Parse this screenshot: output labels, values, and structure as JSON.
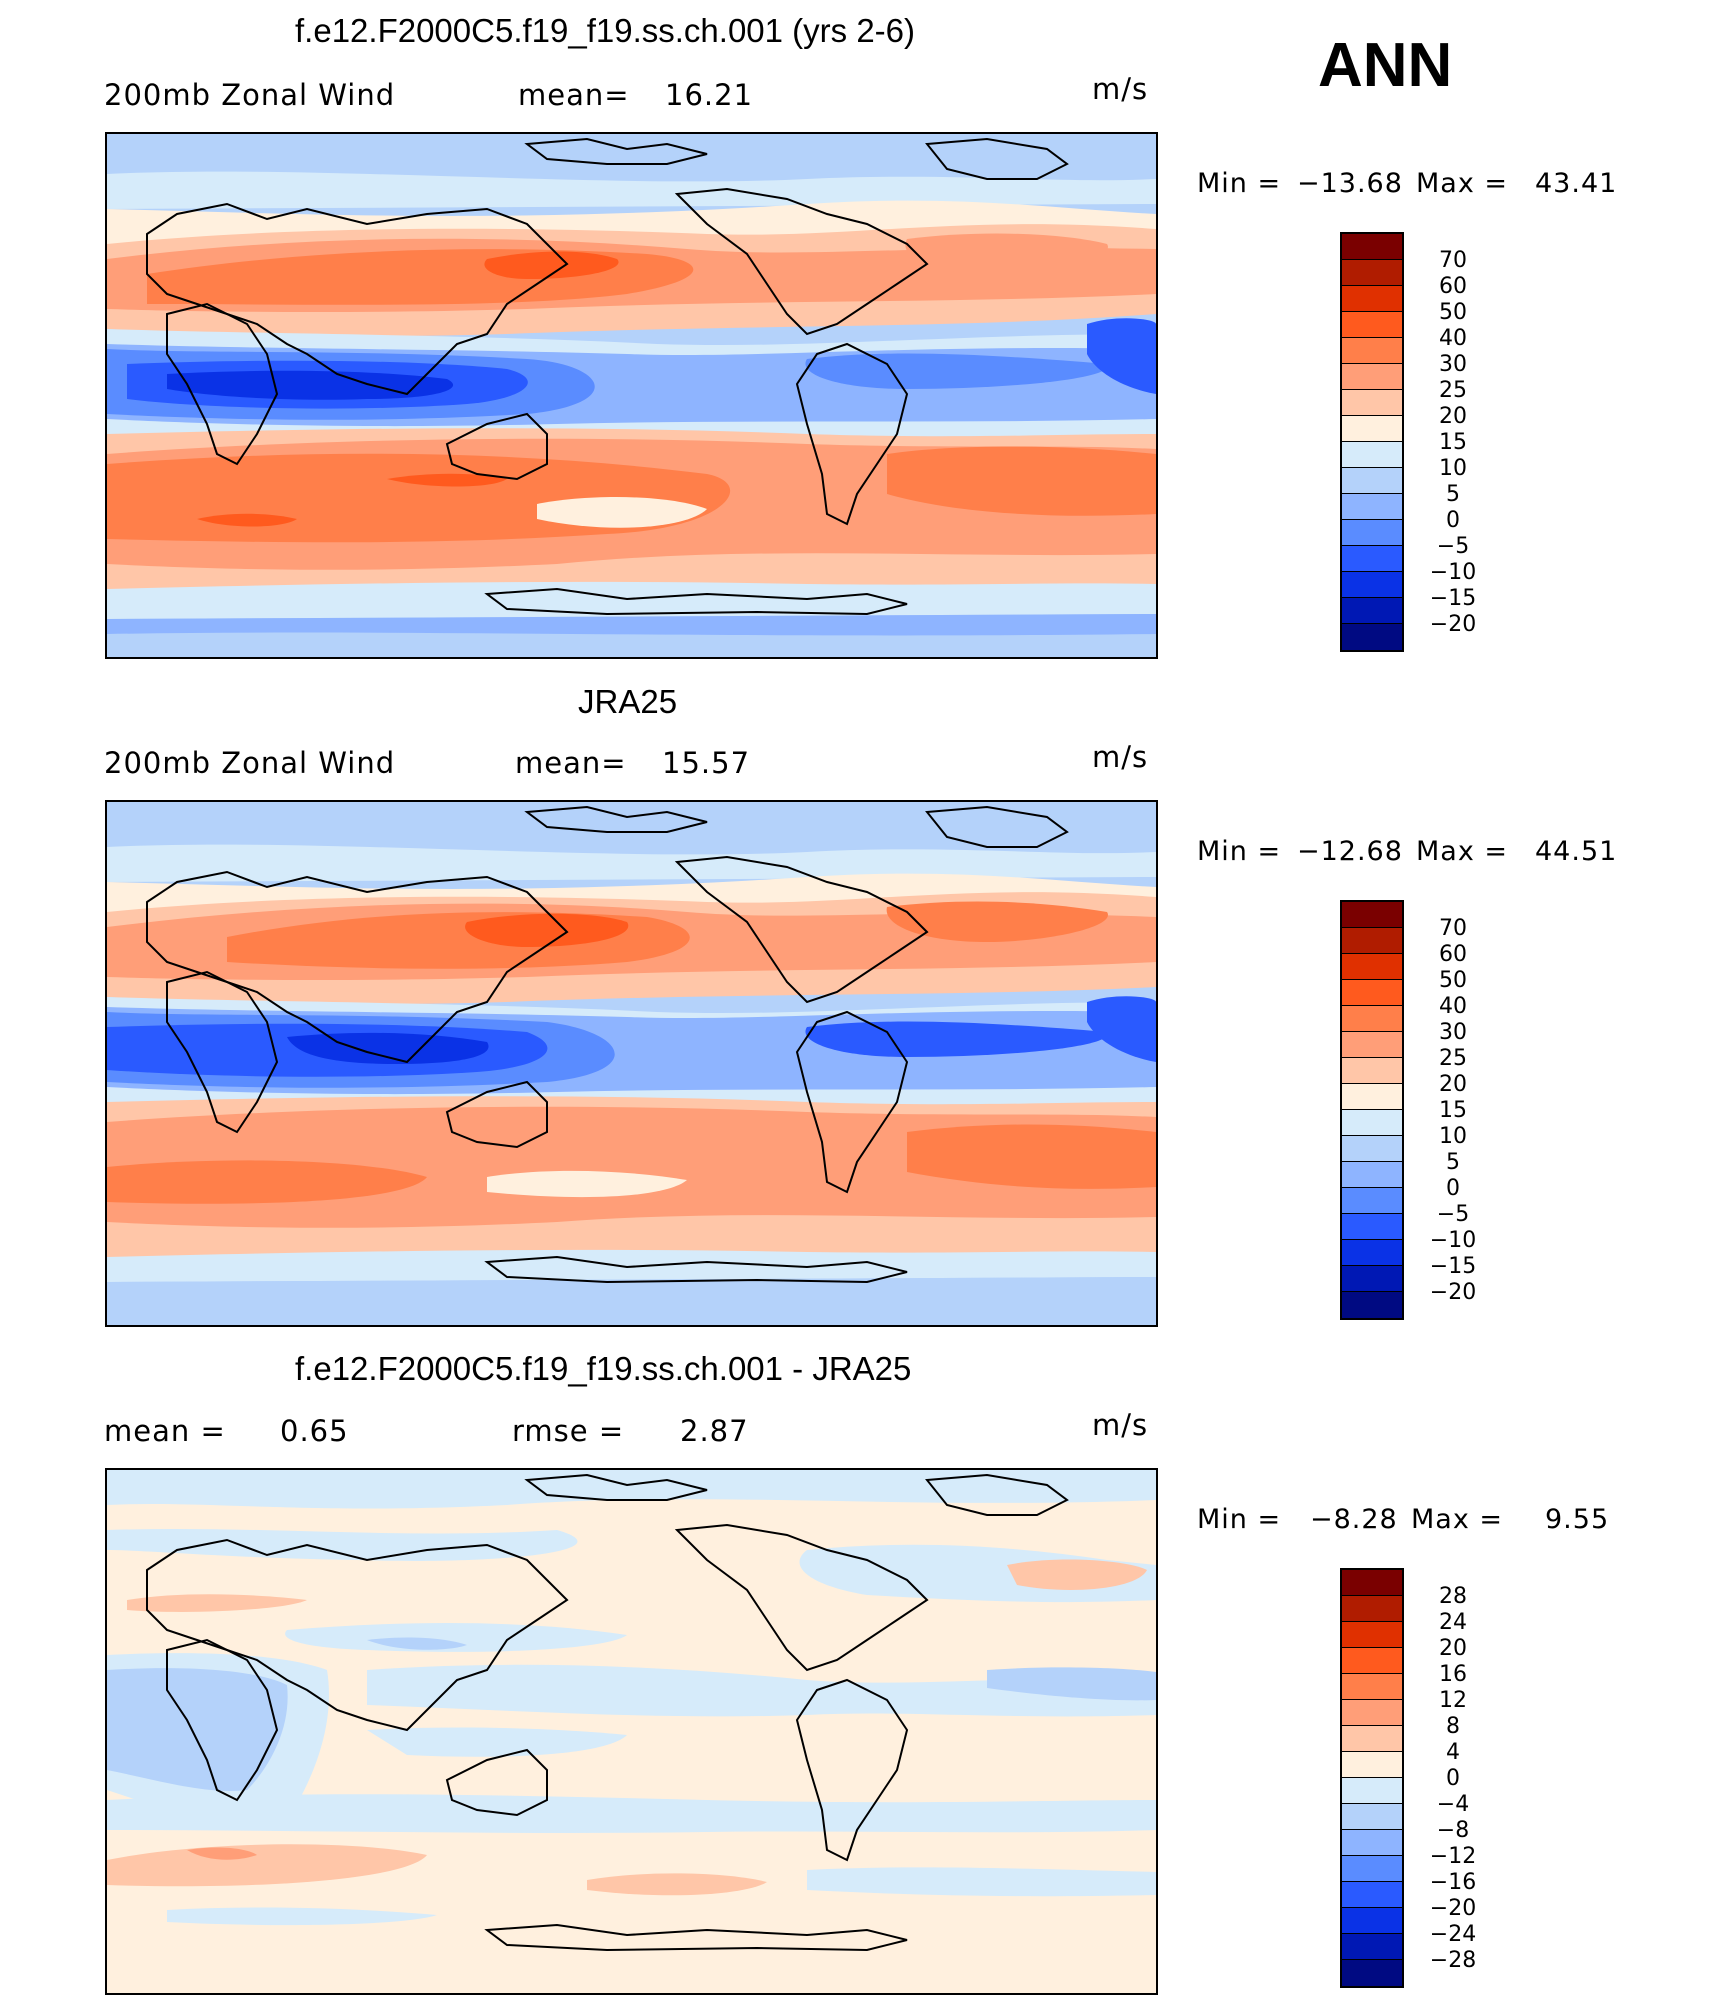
{
  "season": "ANN",
  "panels": [
    {
      "title": "f.e12.F2000C5.f19_f19.ss.ch.001 (yrs 2-6)",
      "left_label": "200mb Zonal Wind",
      "stat1_label": "mean=",
      "stat1_value": "16.21",
      "stat2_label": "",
      "stat2_value": "",
      "units": "m/s",
      "min_label": "Min =",
      "min_value": "−13.68",
      "max_label": "Max =",
      "max_value": "43.41",
      "colorbar_labels": [
        "70",
        "60",
        "50",
        "40",
        "30",
        "25",
        "20",
        "15",
        "10",
        "5",
        "0",
        "−5",
        "−10",
        "−15",
        "−20"
      ]
    },
    {
      "title": "JRA25",
      "left_label": "200mb Zonal Wind",
      "stat1_label": "mean=",
      "stat1_value": "15.57",
      "stat2_label": "",
      "stat2_value": "",
      "units": "m/s",
      "min_label": "Min =",
      "min_value": "−12.68",
      "max_label": "Max =",
      "max_value": "44.51",
      "colorbar_labels": [
        "70",
        "60",
        "50",
        "40",
        "30",
        "25",
        "20",
        "15",
        "10",
        "5",
        "0",
        "−5",
        "−10",
        "−15",
        "−20"
      ]
    },
    {
      "title": "f.e12.F2000C5.f19_f19.ss.ch.001 - JRA25",
      "left_label": "",
      "stat1_label": "mean =",
      "stat1_value": "0.65",
      "stat2_label": "rmse =",
      "stat2_value": "2.87",
      "units": "m/s",
      "min_label": "Min =",
      "min_value": "−8.28",
      "max_label": "Max =",
      "max_value": "9.55",
      "colorbar_labels": [
        "28",
        "24",
        "20",
        "16",
        "12",
        "8",
        "4",
        "0",
        "−4",
        "−8",
        "−12",
        "−16",
        "−20",
        "−24",
        "−28"
      ]
    }
  ],
  "colors": {
    "palette": [
      "#7a0000",
      "#b01c00",
      "#e03000",
      "#ff5a1e",
      "#ff7f4a",
      "#ff9e78",
      "#ffc6a8",
      "#fff0de",
      "#d6ebfa",
      "#b4d2fa",
      "#8eb4ff",
      "#5a8cff",
      "#2a5aff",
      "#0a32e6",
      "#0018b4",
      "#000a82"
    ]
  }
}
